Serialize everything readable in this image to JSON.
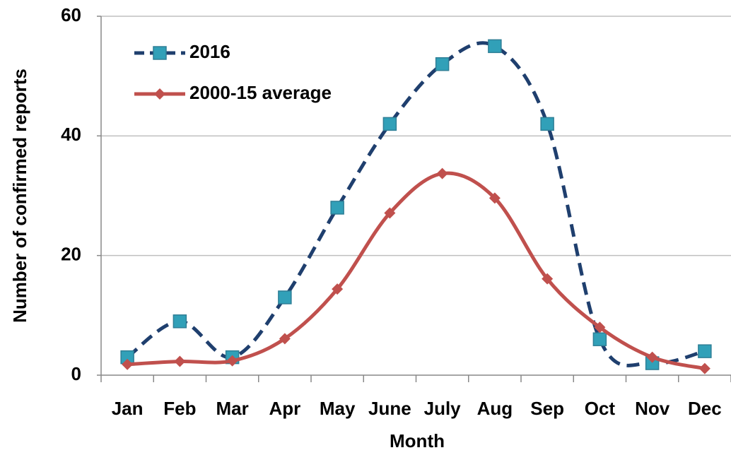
{
  "chart_data": {
    "type": "line",
    "xlabel": "Month",
    "ylabel": "Number of confirmed reports",
    "categories": [
      "Jan",
      "Feb",
      "Mar",
      "Apr",
      "May",
      "June",
      "July",
      "Aug",
      "Sep",
      "Oct",
      "Nov",
      "Dec"
    ],
    "series": [
      {
        "name": "2016",
        "color": "#1f3f6e",
        "marker_color": "#31a0b8",
        "line_style": "dashed",
        "marker": "square",
        "values": [
          3,
          9,
          3,
          13,
          28,
          42,
          52,
          55,
          42,
          6,
          2,
          4
        ]
      },
      {
        "name": "2000-15 average",
        "color": "#c0504d",
        "marker_color": "#c0504d",
        "line_style": "solid",
        "marker": "diamond",
        "values": [
          1.8,
          2.3,
          2.4,
          6.1,
          14.4,
          27.1,
          33.7,
          29.6,
          16.1,
          8.0,
          3.0,
          1.1
        ]
      }
    ],
    "ylim": [
      0,
      60
    ],
    "yticks": [
      0,
      20,
      40,
      60
    ],
    "grid": true,
    "legend": "upper left"
  }
}
